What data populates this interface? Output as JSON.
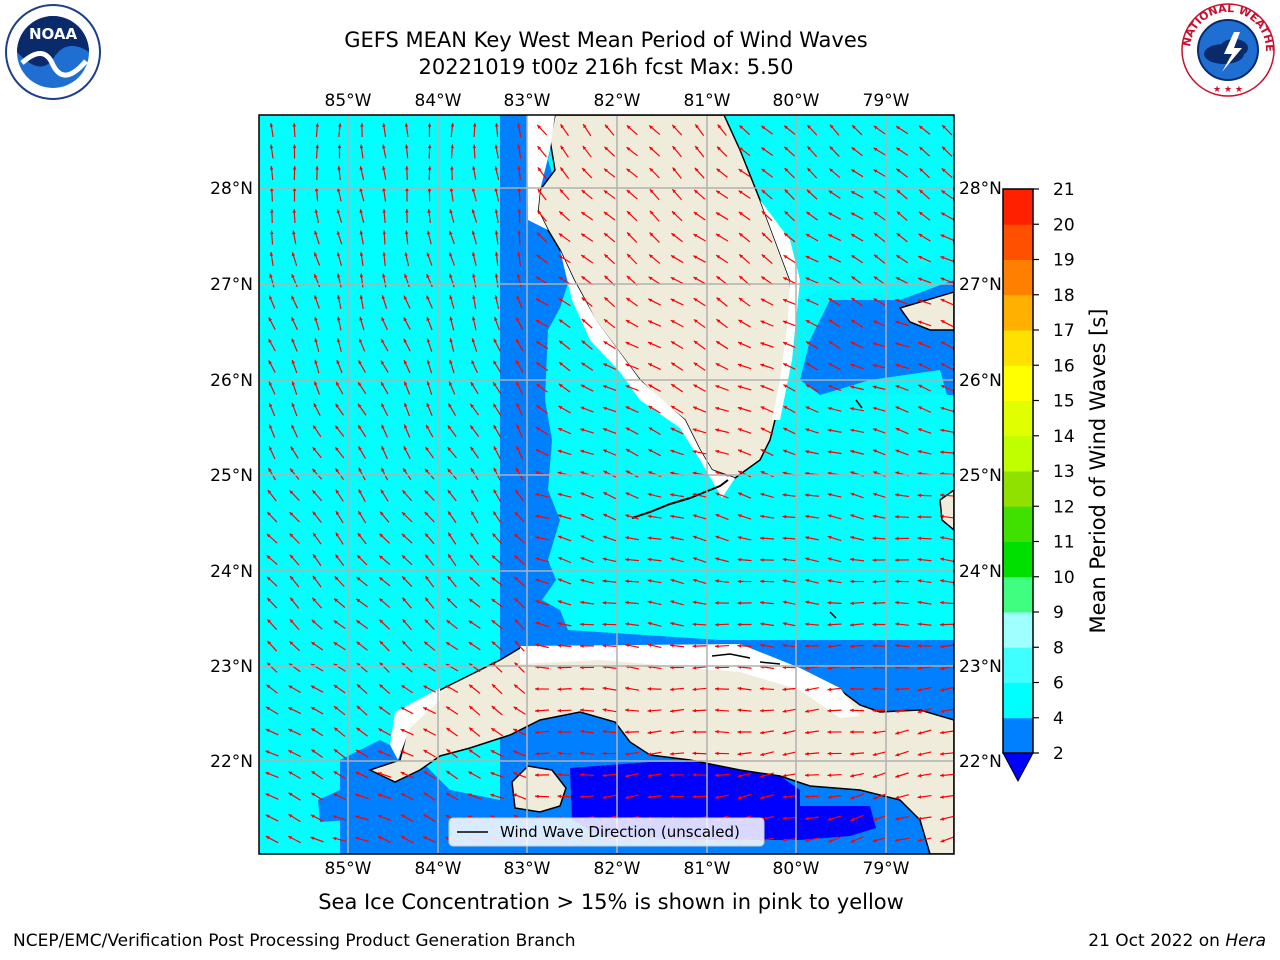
{
  "header": {
    "title_line1": "GEFS MEAN Key West Mean Period of Wind Waves",
    "title_line2": "20221019 t00z 216h fcst   Max: 5.50"
  },
  "logos": {
    "left_text": "NOAA",
    "right_text": "NATIONAL WEATHER SERVICE"
  },
  "map": {
    "lon_labels": [
      "85°W",
      "84°W",
      "83°W",
      "82°W",
      "81°W",
      "80°W",
      "79°W"
    ],
    "lat_labels": [
      "28°N",
      "27°N",
      "26°N",
      "25°N",
      "24°N",
      "23°N",
      "22°N"
    ],
    "legend_label": "Wind Wave Direction (unscaled)",
    "colors": {
      "land": "#efecdc",
      "band_2_4": "#0080ff",
      "band_4_6": "#00ffff",
      "band_below_2": "#0000ff",
      "arrow": "#ff0000",
      "grid": "#b0b0b0"
    }
  },
  "colorbar": {
    "title": "Mean Period of Wind Waves [s]",
    "ticks": [
      "2",
      "4",
      "6",
      "8",
      "9",
      "10",
      "11",
      "12",
      "13",
      "14",
      "15",
      "16",
      "17",
      "18",
      "19",
      "20",
      "21"
    ],
    "colors": [
      "#0080ff",
      "#00ffff",
      "#40ffff",
      "#a0ffff",
      "#40ff80",
      "#00e000",
      "#40e000",
      "#90e000",
      "#c0ff00",
      "#e0ff00",
      "#ffff00",
      "#ffe000",
      "#ffb000",
      "#ff8000",
      "#ff5000",
      "#ff2000"
    ],
    "under_color": "#0000ff"
  },
  "footer": {
    "sea_ice_note": "Sea Ice Concentration > 15% is shown in pink to yellow",
    "left": "NCEP/EMC/Verification Post Processing Product Generation Branch",
    "right_date": "21 Oct 2022 on ",
    "right_machine": "Hera"
  }
}
